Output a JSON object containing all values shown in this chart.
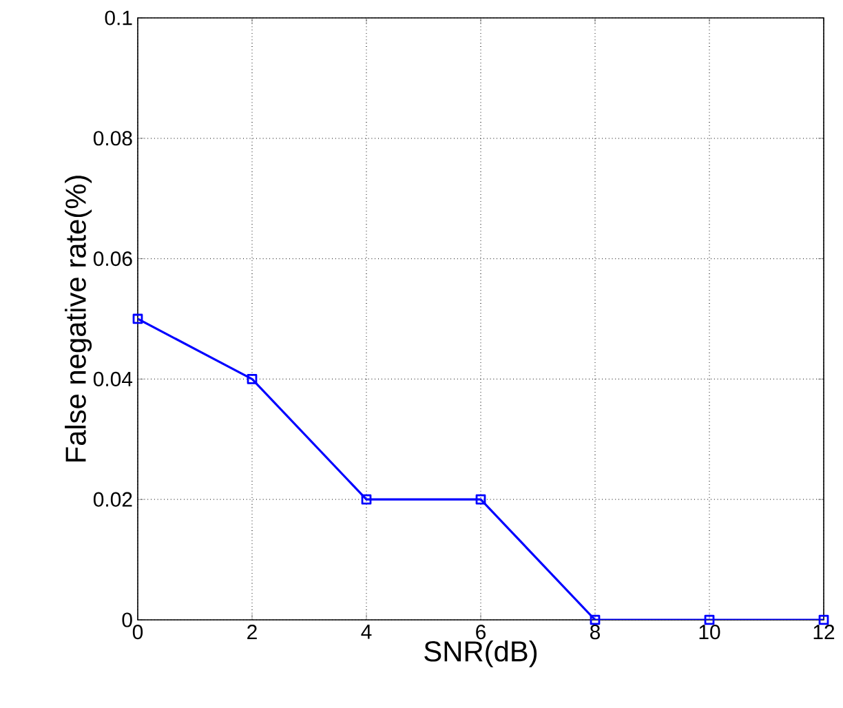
{
  "chart_data": {
    "type": "line",
    "xlabel": "SNR(dB)",
    "ylabel": "False negative rate(%)",
    "x": [
      0,
      2,
      4,
      6,
      8,
      10,
      12
    ],
    "series": [
      {
        "color": "#0000ff",
        "values": [
          0.05,
          0.04,
          0.02,
          0.02,
          0,
          0,
          0
        ]
      }
    ],
    "xlim": [
      0,
      12
    ],
    "ylim": [
      0,
      0.1
    ],
    "xticks": [
      0,
      2,
      4,
      6,
      8,
      10,
      12
    ],
    "yticks": [
      0,
      0.02,
      0.04,
      0.06,
      0.08,
      0.1
    ],
    "grid": true,
    "marker": "square",
    "line_style": "solid"
  }
}
